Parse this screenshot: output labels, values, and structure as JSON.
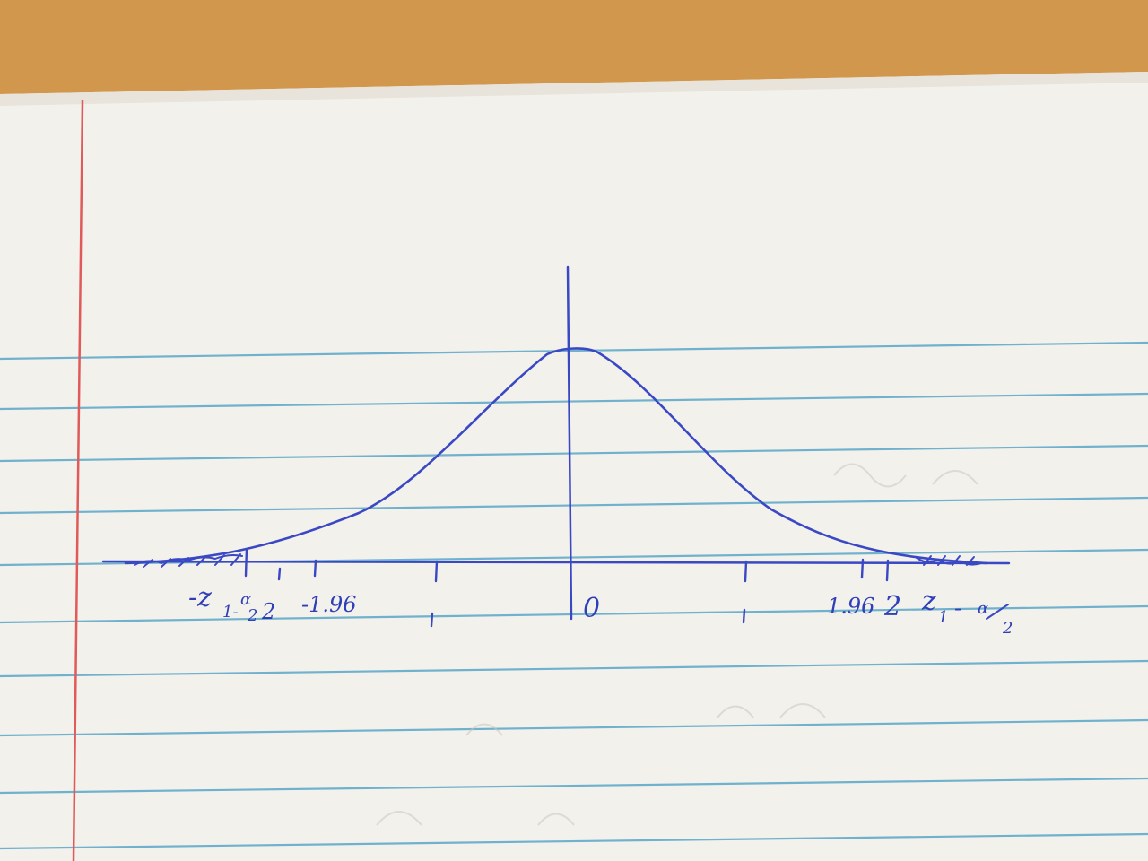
{
  "colors": {
    "desk": "#c98f45",
    "paper": "#f3f1ec",
    "rule_line": "#5aa6c8",
    "margin_line": "#e05a5a",
    "ink": "#3a48c4"
  },
  "sketch": {
    "subject": "bell-shaped curve with symmetric tick marks and shaded tails",
    "labels": {
      "zero": "0",
      "left_crit_main": "-z",
      "left_crit_sub": "1-",
      "left_crit_frac_num": "α",
      "left_crit_frac_den": "2",
      "left_two": "2",
      "neg_196": "-1.96",
      "pos_196": "1.96",
      "pos_two": "2",
      "right_crit_main": "z",
      "right_crit_sub": "1",
      "right_crit_dash": "-",
      "right_crit_frac_num": "α",
      "right_crit_frac_den": "2"
    }
  }
}
